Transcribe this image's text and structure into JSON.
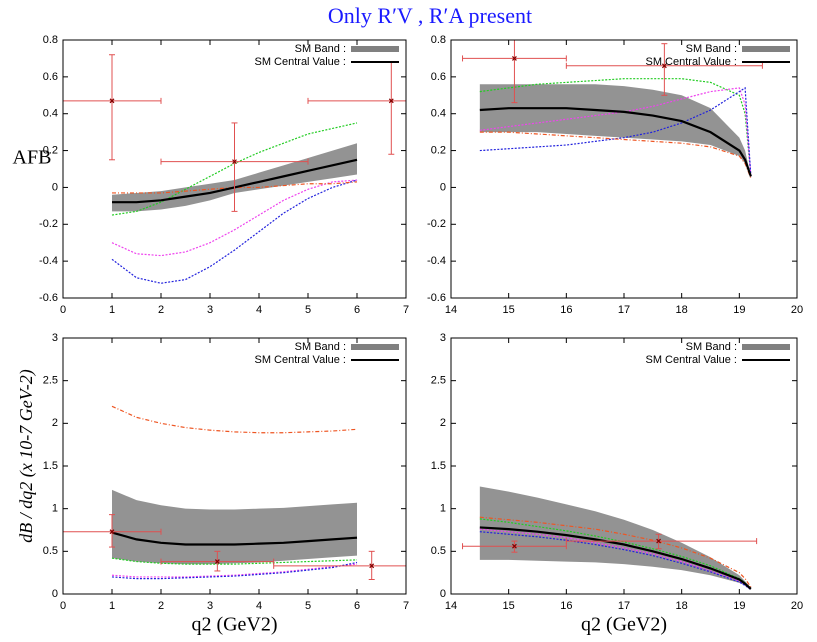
{
  "title": "Only R′V , R′A present",
  "chart_data": [
    {
      "type": "line",
      "ylabel": "AFB",
      "xlim": [
        0,
        7
      ],
      "xticks": [
        0,
        1,
        2,
        3,
        4,
        5,
        6,
        7
      ],
      "ylim": [
        -0.6,
        0.8
      ],
      "yticks": [
        -0.6,
        -0.4,
        -0.2,
        0,
        0.2,
        0.4,
        0.6,
        0.8
      ],
      "x": [
        1,
        1.5,
        2,
        2.5,
        3,
        3.5,
        4,
        4.5,
        5,
        5.5,
        6
      ],
      "band": {
        "name": "SM Band :",
        "color": "#808080",
        "low": [
          -0.13,
          -0.13,
          -0.12,
          -0.1,
          -0.07,
          -0.03,
          -0.01,
          0.01,
          0.03,
          0.05,
          0.07
        ],
        "high": [
          -0.04,
          -0.03,
          -0.02,
          0,
          0.02,
          0.04,
          0.08,
          0.12,
          0.16,
          0.2,
          0.24
        ]
      },
      "series": [
        {
          "name": "SM Central Value :",
          "color": "#000000",
          "values": [
            -0.08,
            -0.08,
            -0.07,
            -0.05,
            -0.03,
            0,
            0.03,
            0.06,
            0.09,
            0.12,
            0.15
          ]
        },
        {
          "color": "#22cc22",
          "values": [
            -0.15,
            -0.13,
            -0.08,
            -0.01,
            0.06,
            0.13,
            0.19,
            0.24,
            0.29,
            0.32,
            0.35
          ]
        },
        {
          "color": "#ee44ee",
          "values": [
            -0.3,
            -0.36,
            -0.37,
            -0.35,
            -0.3,
            -0.23,
            -0.15,
            -0.07,
            -0.01,
            0.03,
            0.04
          ]
        },
        {
          "color": "#2222dd",
          "values": [
            -0.39,
            -0.49,
            -0.52,
            -0.5,
            -0.43,
            -0.34,
            -0.24,
            -0.14,
            -0.06,
            0,
            0.04
          ]
        },
        {
          "color": "#ee5522",
          "values": [
            -0.03,
            -0.03,
            -0.03,
            -0.02,
            -0.01,
            0,
            0,
            0.01,
            0.02,
            0.02,
            0.03
          ]
        }
      ],
      "points": {
        "color": "#e05050",
        "x": [
          1,
          3.5,
          6.7
        ],
        "x_low": [
          0,
          2,
          5
        ],
        "x_high": [
          2,
          5,
          7
        ],
        "y": [
          0.47,
          0.14,
          0.47
        ],
        "y_low": [
          0.15,
          -0.13,
          0.18
        ],
        "y_high": [
          0.72,
          0.35,
          0.68
        ]
      }
    },
    {
      "type": "line",
      "xlim": [
        14,
        20
      ],
      "xticks": [
        14,
        15,
        16,
        17,
        18,
        19,
        20
      ],
      "ylim": [
        -0.6,
        0.8
      ],
      "yticks": [
        -0.6,
        -0.4,
        -0.2,
        0,
        0.2,
        0.4,
        0.6,
        0.8
      ],
      "x": [
        14.5,
        15,
        15.5,
        16,
        16.5,
        17,
        17.5,
        18,
        18.5,
        19,
        19.1,
        19.2
      ],
      "band": {
        "name": "SM Band :",
        "color": "#808080",
        "low": [
          0.3,
          0.3,
          0.3,
          0.29,
          0.28,
          0.27,
          0.26,
          0.25,
          0.23,
          0.17,
          0.13,
          0.06
        ],
        "high": [
          0.56,
          0.56,
          0.56,
          0.56,
          0.56,
          0.55,
          0.53,
          0.5,
          0.43,
          0.27,
          0.2,
          0.06
        ]
      },
      "series": [
        {
          "name": "SM Central Value :",
          "color": "#000000",
          "values": [
            0.42,
            0.43,
            0.43,
            0.43,
            0.42,
            0.41,
            0.39,
            0.36,
            0.3,
            0.2,
            0.15,
            0.06
          ]
        },
        {
          "color": "#22cc22",
          "values": [
            0.52,
            0.54,
            0.56,
            0.57,
            0.58,
            0.59,
            0.59,
            0.59,
            0.57,
            0.5,
            0.4,
            0.06
          ]
        },
        {
          "color": "#ee44ee",
          "values": [
            0.31,
            0.33,
            0.35,
            0.37,
            0.39,
            0.41,
            0.44,
            0.48,
            0.52,
            0.54,
            0.45,
            0.06
          ]
        },
        {
          "color": "#2222dd",
          "values": [
            0.2,
            0.21,
            0.22,
            0.23,
            0.25,
            0.27,
            0.3,
            0.35,
            0.42,
            0.52,
            0.54,
            0.06
          ]
        },
        {
          "color": "#ee5522",
          "values": [
            0.3,
            0.3,
            0.29,
            0.28,
            0.27,
            0.26,
            0.25,
            0.24,
            0.22,
            0.17,
            0.13,
            0.05
          ]
        }
      ],
      "points": {
        "color": "#e05050",
        "x": [
          15.1,
          17.7
        ],
        "x_low": [
          14.2,
          16
        ],
        "x_high": [
          16,
          19.4
        ],
        "y": [
          0.7,
          0.66
        ],
        "y_low": [
          0.46,
          0.5
        ],
        "y_high": [
          0.8,
          0.78
        ]
      }
    },
    {
      "type": "line",
      "ylabel": "dB / dq2  (x 10-7 GeV-2)",
      "xlabel": "q2 (GeV2)",
      "xlim": [
        0,
        7
      ],
      "xticks": [
        0,
        1,
        2,
        3,
        4,
        5,
        6,
        7
      ],
      "ylim": [
        0,
        3
      ],
      "yticks": [
        0,
        0.5,
        1,
        1.5,
        2,
        2.5,
        3
      ],
      "x": [
        1,
        1.5,
        2,
        2.5,
        3,
        3.5,
        4,
        4.5,
        5,
        5.5,
        6
      ],
      "band": {
        "name": "SM Band :",
        "color": "#808080",
        "low": [
          0.42,
          0.38,
          0.36,
          0.35,
          0.35,
          0.36,
          0.37,
          0.39,
          0.41,
          0.43,
          0.45
        ],
        "high": [
          1.22,
          1.1,
          1.04,
          1.0,
          0.99,
          0.99,
          1.0,
          1.01,
          1.03,
          1.05,
          1.07
        ]
      },
      "series": [
        {
          "name": "SM Central Value :",
          "color": "#000000",
          "values": [
            0.72,
            0.64,
            0.6,
            0.58,
            0.58,
            0.58,
            0.59,
            0.6,
            0.62,
            0.64,
            0.66
          ]
        },
        {
          "color": "#22cc22",
          "values": [
            0.42,
            0.38,
            0.36,
            0.35,
            0.35,
            0.35,
            0.36,
            0.37,
            0.38,
            0.39,
            0.4
          ]
        },
        {
          "color": "#ee44ee",
          "values": [
            0.22,
            0.2,
            0.2,
            0.2,
            0.21,
            0.22,
            0.24,
            0.26,
            0.29,
            0.32,
            0.35
          ]
        },
        {
          "color": "#2222dd",
          "values": [
            0.2,
            0.18,
            0.18,
            0.19,
            0.2,
            0.21,
            0.23,
            0.25,
            0.28,
            0.31,
            0.37
          ]
        },
        {
          "color": "#ee5522",
          "values": [
            2.2,
            2.07,
            2.0,
            1.95,
            1.92,
            1.9,
            1.89,
            1.89,
            1.9,
            1.91,
            1.93
          ]
        }
      ],
      "points": {
        "color": "#e05050",
        "x": [
          1,
          3.15,
          6.3
        ],
        "x_low": [
          0,
          2,
          4.3
        ],
        "x_high": [
          2,
          4.3,
          7
        ],
        "y": [
          0.73,
          0.38,
          0.33
        ],
        "y_low": [
          0.55,
          0.27,
          0.17
        ],
        "y_high": [
          0.93,
          0.5,
          0.5
        ]
      }
    },
    {
      "type": "line",
      "xlabel": "q2 (GeV2)",
      "xlim": [
        14,
        20
      ],
      "xticks": [
        14,
        15,
        16,
        17,
        18,
        19,
        20
      ],
      "ylim": [
        0,
        3
      ],
      "yticks": [
        0,
        0.5,
        1,
        1.5,
        2,
        2.5,
        3
      ],
      "x": [
        14.5,
        15,
        15.5,
        16,
        16.5,
        17,
        17.5,
        18,
        18.5,
        19,
        19.1,
        19.2
      ],
      "band": {
        "name": "SM Band :",
        "color": "#808080",
        "low": [
          0.4,
          0.4,
          0.39,
          0.38,
          0.37,
          0.35,
          0.32,
          0.28,
          0.22,
          0.13,
          0.1,
          0.05
        ],
        "high": [
          1.26,
          1.2,
          1.13,
          1.05,
          0.97,
          0.87,
          0.75,
          0.6,
          0.43,
          0.22,
          0.15,
          0.07
        ]
      },
      "series": [
        {
          "name": "SM Central Value :",
          "color": "#000000",
          "values": [
            0.78,
            0.76,
            0.73,
            0.69,
            0.64,
            0.58,
            0.5,
            0.41,
            0.3,
            0.17,
            0.12,
            0.06
          ]
        },
        {
          "color": "#22cc22",
          "values": [
            0.88,
            0.84,
            0.79,
            0.74,
            0.68,
            0.61,
            0.53,
            0.44,
            0.33,
            0.18,
            0.13,
            0.06
          ]
        },
        {
          "color": "#ee44ee",
          "values": [
            0.76,
            0.73,
            0.7,
            0.66,
            0.6,
            0.54,
            0.47,
            0.38,
            0.27,
            0.15,
            0.11,
            0.05
          ]
        },
        {
          "color": "#2222dd",
          "values": [
            0.73,
            0.7,
            0.67,
            0.63,
            0.58,
            0.52,
            0.45,
            0.36,
            0.26,
            0.14,
            0.1,
            0.05
          ]
        },
        {
          "color": "#ee5522",
          "values": [
            0.9,
            0.87,
            0.84,
            0.8,
            0.76,
            0.7,
            0.63,
            0.54,
            0.42,
            0.25,
            0.18,
            0.08
          ]
        }
      ],
      "points": {
        "color": "#e05050",
        "x": [
          15.1,
          17.6
        ],
        "x_low": [
          14.2,
          16
        ],
        "x_high": [
          16,
          19.3
        ],
        "y": [
          0.56,
          0.62
        ],
        "y_low": [
          0.49,
          0.53
        ],
        "y_high": [
          0.62,
          0.7
        ]
      }
    }
  ]
}
